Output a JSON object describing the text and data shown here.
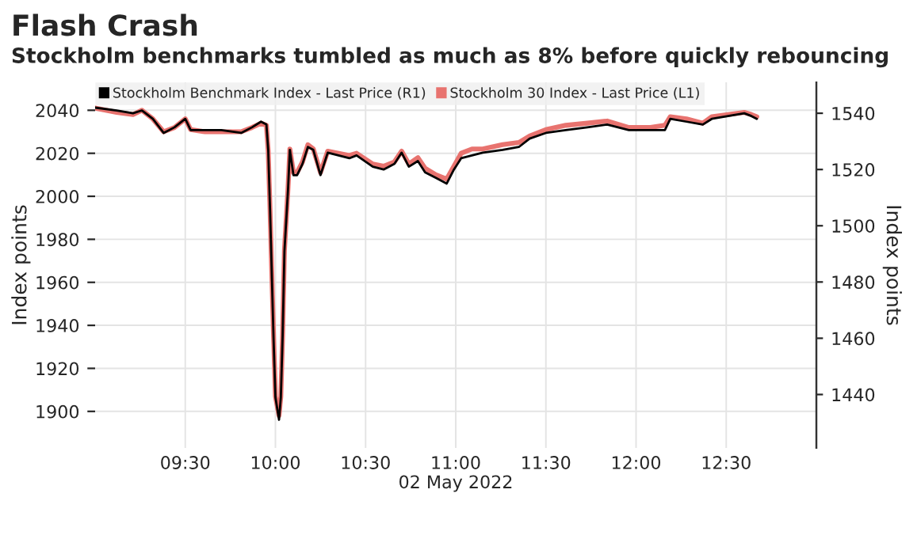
{
  "chart_data": {
    "type": "line",
    "title": "Flash Crash",
    "subtitle": "Stockholm benchmarks tumbled as much as 8% before quickly rebouncing",
    "xlabel": "02 May 2022",
    "ylabel": "Index points",
    "y2label": "Index points",
    "x": [
      9.0,
      9.12,
      9.21,
      9.26,
      9.32,
      9.38,
      9.44,
      9.5,
      9.53,
      9.61,
      9.7,
      9.81,
      9.87,
      9.92,
      9.95,
      9.96,
      9.97,
      9.99,
      10.0,
      10.02,
      10.03,
      10.04,
      10.05,
      10.07,
      10.08,
      10.1,
      10.12,
      10.15,
      10.18,
      10.21,
      10.25,
      10.29,
      10.35,
      10.41,
      10.45,
      10.54,
      10.6,
      10.66,
      10.7,
      10.74,
      10.79,
      10.83,
      10.89,
      10.95,
      10.99,
      11.03,
      11.09,
      11.15,
      11.26,
      11.35,
      11.41,
      11.5,
      11.61,
      11.73,
      11.84,
      11.96,
      12.08,
      12.16,
      12.19,
      12.28,
      12.37,
      12.42,
      12.51,
      12.6,
      12.64,
      12.67
    ],
    "series": [
      {
        "name": "Stockholm Benchmark Index - Last Price (R1)",
        "color": "#000000",
        "axis": "y2",
        "values": [
          1542,
          1541,
          1540,
          1541,
          1538,
          1533,
          1535,
          1538,
          1534,
          1534,
          1534,
          1533,
          1535,
          1537,
          1536,
          1527,
          1506,
          1459,
          1439,
          1431,
          1439,
          1461,
          1491,
          1513,
          1527,
          1518,
          1518,
          1522,
          1528,
          1527,
          1518,
          1526,
          1525,
          1524,
          1525,
          1521,
          1520,
          1522,
          1526,
          1521,
          1523,
          1519,
          1517,
          1515,
          1520,
          1524,
          1525,
          1526,
          1527,
          1528,
          1531,
          1533,
          1534,
          1535,
          1536,
          1534,
          1534,
          1534,
          1538,
          1537,
          1536,
          1538,
          1539,
          1540,
          1539,
          1538
        ]
      },
      {
        "name": "Stockholm 30 Index - Last Price (L1)",
        "color": "#e8736f",
        "axis": "y",
        "values": [
          2041,
          2039,
          2038,
          2040,
          2036,
          2030,
          2032,
          2036,
          2031,
          2030,
          2030,
          2030,
          2032,
          2034,
          2033,
          2021,
          1994,
          1934,
          1907,
          1898,
          1907,
          1936,
          1975,
          2004,
          2022,
          2011,
          2011,
          2016,
          2024,
          2022,
          2011,
          2021,
          2020,
          2019,
          2020,
          2015,
          2014,
          2016,
          2021,
          2015,
          2018,
          2013,
          2010,
          2008,
          2014,
          2020,
          2022,
          2022,
          2024,
          2025,
          2028,
          2031,
          2033,
          2034,
          2035,
          2032,
          2032,
          2033,
          2037,
          2036,
          2034,
          2037,
          2038,
          2039,
          2038,
          2037
        ]
      }
    ],
    "xlim": [
      9.0,
      13.0
    ],
    "xticks": [
      {
        "value": 9.5,
        "label": "09:30"
      },
      {
        "value": 10.0,
        "label": "10:00"
      },
      {
        "value": 10.5,
        "label": "10:30"
      },
      {
        "value": 11.0,
        "label": "11:00"
      },
      {
        "value": 11.5,
        "label": "11:30"
      },
      {
        "value": 12.0,
        "label": "12:00"
      },
      {
        "value": 12.5,
        "label": "12:30"
      }
    ],
    "ylim": [
      1883,
      2053
    ],
    "yticks": [
      1900,
      1920,
      1940,
      1960,
      1980,
      2000,
      2020,
      2040
    ],
    "y2lim": [
      1421,
      1551
    ],
    "y2ticks": [
      1440,
      1460,
      1480,
      1500,
      1520,
      1540
    ],
    "grid": true,
    "legend": "top left"
  }
}
